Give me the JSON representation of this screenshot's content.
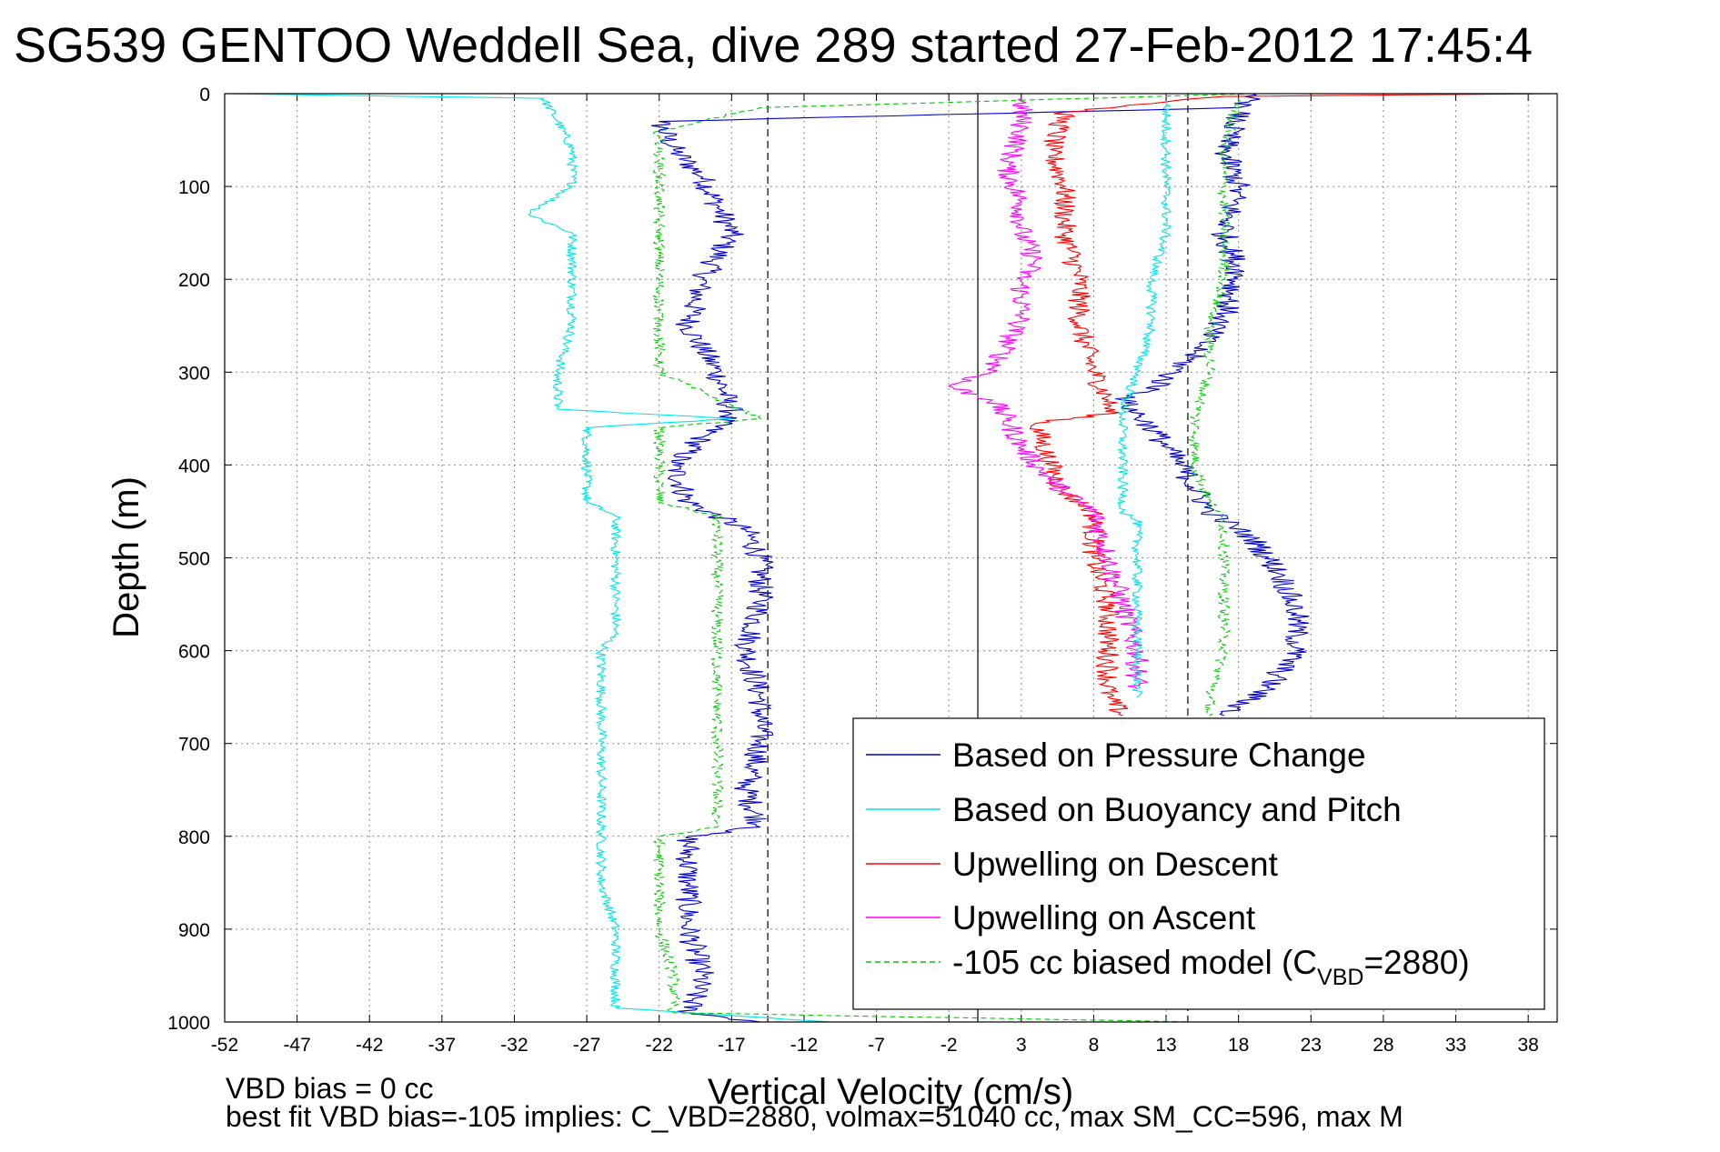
{
  "chart_data": {
    "type": "line",
    "title": "SG539 GENTOO Weddell Sea, dive 289 started 27-Feb-2012 17:45:4",
    "xlabel": "Vertical Velocity (cm/s)",
    "ylabel": "Depth (m)",
    "xlim": [
      -52,
      40
    ],
    "ylim": [
      1000,
      0
    ],
    "y_reversed": true,
    "grid": true,
    "legend_placement": "bottom-right",
    "x_ticks": [
      -52,
      -47,
      -42,
      -37,
      -32,
      -27,
      -22,
      -17,
      -12,
      -7,
      -2,
      3,
      8,
      13,
      18,
      23,
      28,
      33,
      38
    ],
    "y_ticks": [
      0,
      100,
      200,
      300,
      400,
      500,
      600,
      700,
      800,
      900,
      1000
    ],
    "vertical_reference_lines": [
      {
        "x": 0,
        "style": "solid",
        "color": "#000000"
      },
      {
        "x": -14.5,
        "style": "dashed",
        "color": "#000000"
      },
      {
        "x": 14.5,
        "style": "dashed",
        "color": "#000000"
      }
    ],
    "series": [
      {
        "name": "Based on Pressure Change",
        "color": "#0000cc",
        "dash": "solid",
        "noise": 0.9,
        "points": [
          [
            19,
            0
          ],
          [
            18,
            15
          ],
          [
            -22,
            30
          ],
          [
            -21,
            60
          ],
          [
            -19,
            90
          ],
          [
            -18,
            120
          ],
          [
            -17,
            150
          ],
          [
            -19,
            200
          ],
          [
            -20,
            250
          ],
          [
            -18,
            300
          ],
          [
            -17,
            345
          ],
          [
            -19,
            370
          ],
          [
            -21,
            400
          ],
          [
            -20,
            440
          ],
          [
            -16,
            470
          ],
          [
            -15,
            500
          ],
          [
            -15,
            550
          ],
          [
            -16,
            600
          ],
          [
            -15,
            650
          ],
          [
            -15,
            700
          ],
          [
            -16,
            750
          ],
          [
            -15,
            790
          ],
          [
            -20,
            800
          ],
          [
            -20,
            850
          ],
          [
            -20,
            900
          ],
          [
            -19,
            950
          ],
          [
            -20,
            990
          ],
          [
            -15,
            1000
          ]
        ]
      },
      {
        "name": "Based on Buoyancy and Pitch",
        "color": "#00e6e6",
        "dash": "solid",
        "noise": 0.35,
        "points": [
          [
            -52,
            0
          ],
          [
            -30,
            5
          ],
          [
            -29,
            30
          ],
          [
            -28,
            60
          ],
          [
            -28,
            100
          ],
          [
            -29,
            110
          ],
          [
            -31,
            130
          ],
          [
            -28,
            150
          ],
          [
            -28,
            200
          ],
          [
            -28,
            250
          ],
          [
            -29,
            300
          ],
          [
            -29,
            340
          ],
          [
            -17,
            350
          ],
          [
            -27,
            360
          ],
          [
            -27,
            400
          ],
          [
            -27,
            440
          ],
          [
            -25,
            455
          ],
          [
            -25,
            500
          ],
          [
            -25,
            550
          ],
          [
            -25,
            580
          ],
          [
            -26,
            600
          ],
          [
            -26,
            650
          ],
          [
            -26,
            700
          ],
          [
            -26,
            750
          ],
          [
            -26,
            780
          ],
          [
            -26,
            800
          ],
          [
            -26,
            850
          ],
          [
            -25,
            900
          ],
          [
            -25,
            950
          ],
          [
            -25,
            985
          ],
          [
            -10,
            1000
          ]
        ]
      },
      {
        "name": "Upwelling on Descent",
        "color": "#ff0000",
        "dash": "solid",
        "noise": 0.8,
        "points": [
          [
            40,
            0
          ],
          [
            17,
            3
          ],
          [
            6,
            20
          ],
          [
            5,
            60
          ],
          [
            6,
            100
          ],
          [
            6,
            150
          ],
          [
            7,
            200
          ],
          [
            7,
            250
          ],
          [
            8,
            300
          ],
          [
            9,
            330
          ],
          [
            9,
            345
          ],
          [
            4,
            355
          ],
          [
            5,
            400
          ],
          [
            6,
            430
          ],
          [
            8,
            450
          ],
          [
            8,
            500
          ],
          [
            9,
            550
          ],
          [
            9,
            600
          ],
          [
            9,
            650
          ],
          [
            10,
            670
          ]
        ]
      },
      {
        "name": "Upwelling on Ascent",
        "color": "#ff00ff",
        "dash": "solid",
        "noise": 0.8,
        "points": [
          [
            3,
            5
          ],
          [
            3,
            40
          ],
          [
            2,
            80
          ],
          [
            3,
            120
          ],
          [
            3,
            150
          ],
          [
            4,
            180
          ],
          [
            3,
            200
          ],
          [
            3,
            240
          ],
          [
            2,
            270
          ],
          [
            1,
            300
          ],
          [
            -2,
            315
          ],
          [
            1,
            330
          ],
          [
            2,
            350
          ],
          [
            3,
            380
          ],
          [
            4,
            400
          ],
          [
            6,
            430
          ],
          [
            8,
            450
          ],
          [
            9,
            500
          ],
          [
            10,
            550
          ],
          [
            11,
            600
          ],
          [
            11,
            640
          ]
        ]
      },
      {
        "name": "-105 cc biased model (C_VBD=2880)",
        "color": "#00cc00",
        "dash": "6,4",
        "noise": 0.4,
        "points": [
          [
            19,
            0
          ],
          [
            -15,
            15
          ],
          [
            -22,
            40
          ],
          [
            -22,
            100
          ],
          [
            -22,
            140
          ],
          [
            -22,
            200
          ],
          [
            -22,
            250
          ],
          [
            -22,
            300
          ],
          [
            -15,
            350
          ],
          [
            -22,
            360
          ],
          [
            -22,
            400
          ],
          [
            -22,
            440
          ],
          [
            -18,
            455
          ],
          [
            -18,
            500
          ],
          [
            -18,
            550
          ],
          [
            -18,
            600
          ],
          [
            -18,
            650
          ],
          [
            -18,
            700
          ],
          [
            -18,
            750
          ],
          [
            -18,
            790
          ],
          [
            -22,
            800
          ],
          [
            -22,
            850
          ],
          [
            -22,
            900
          ],
          [
            -21,
            950
          ],
          [
            -21,
            990
          ],
          [
            15,
            1000
          ]
        ]
      },
      {
        "name": "",
        "color": "#0000cc",
        "dash": "solid",
        "noise": 0.9,
        "points": [
          [
            18,
            20
          ],
          [
            17,
            60
          ],
          [
            18,
            100
          ],
          [
            17,
            150
          ],
          [
            18,
            190
          ],
          [
            17,
            240
          ],
          [
            15,
            280
          ],
          [
            12,
            320
          ],
          [
            10,
            330
          ],
          [
            12,
            360
          ],
          [
            14,
            400
          ],
          [
            16,
            450
          ],
          [
            19,
            480
          ],
          [
            21,
            520
          ],
          [
            22,
            560
          ],
          [
            22,
            600
          ],
          [
            20,
            640
          ],
          [
            17,
            670
          ]
        ]
      },
      {
        "name": "",
        "color": "#00e6e6",
        "dash": "solid",
        "noise": 0.35,
        "points": [
          [
            13,
            10
          ],
          [
            13,
            60
          ],
          [
            13,
            100
          ],
          [
            13,
            150
          ],
          [
            12,
            200
          ],
          [
            12,
            250
          ],
          [
            11,
            300
          ],
          [
            10,
            340
          ],
          [
            10,
            400
          ],
          [
            10,
            450
          ],
          [
            11,
            460
          ],
          [
            11,
            500
          ],
          [
            11,
            550
          ],
          [
            11,
            600
          ],
          [
            11,
            650
          ]
        ]
      },
      {
        "name": "",
        "color": "#00cc00",
        "dash": "6,4",
        "noise": 0.4,
        "points": [
          [
            18,
            5
          ],
          [
            17,
            60
          ],
          [
            17,
            100
          ],
          [
            17,
            150
          ],
          [
            17,
            200
          ],
          [
            16,
            250
          ],
          [
            16,
            300
          ],
          [
            15,
            350
          ],
          [
            15,
            400
          ],
          [
            16,
            440
          ],
          [
            17,
            460
          ],
          [
            17,
            500
          ],
          [
            17,
            550
          ],
          [
            17,
            600
          ],
          [
            16,
            650
          ],
          [
            16,
            670
          ]
        ]
      }
    ],
    "legend": [
      {
        "label": "Based on Pressure Change",
        "color": "#0000cc",
        "dash": "solid"
      },
      {
        "label": "Based on Buoyancy and Pitch",
        "color": "#00e6e6",
        "dash": "solid"
      },
      {
        "label": "Upwelling on Descent",
        "color": "#ff0000",
        "dash": "solid"
      },
      {
        "label": "Upwelling on Ascent",
        "color": "#ff00ff",
        "dash": "solid"
      },
      {
        "label_main": "-105 cc biased model (C",
        "label_sub": "VBD",
        "label_end": "=2880)",
        "color": "#00cc00",
        "dash": "6,4"
      }
    ],
    "footer": {
      "line1": "VBD bias = 0 cc",
      "line2": "best fit VBD bias=-105 implies: C_VBD=2880, volmax=51040 cc, max SM_CC=596, max M"
    }
  }
}
